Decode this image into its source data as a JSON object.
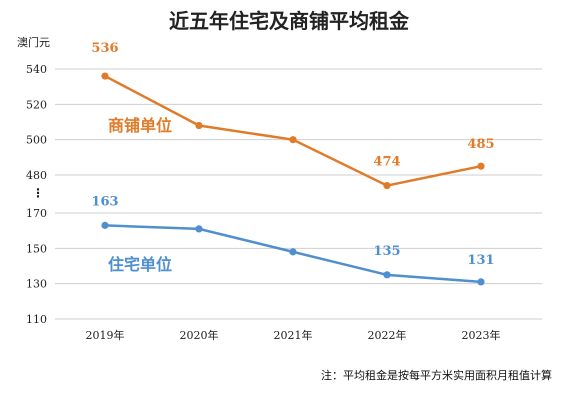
{
  "chart_data": {
    "type": "line",
    "title": "近五年住宅及商铺平均租金",
    "ylabel": "澳门元",
    "categories": [
      "2019年",
      "2020年",
      "2021年",
      "2022年",
      "2023年"
    ],
    "broken_axis": true,
    "upper_ticks": [
      480,
      500,
      520,
      540
    ],
    "lower_ticks": [
      110,
      130,
      150,
      170
    ],
    "upper_range": [
      470,
      545
    ],
    "lower_range": [
      110,
      172
    ],
    "grid": true,
    "series": [
      {
        "name": "商铺单位",
        "color": "#e07b2a",
        "segment": "upper",
        "values": [
          536,
          508,
          500,
          474,
          485
        ],
        "labels": [
          "536",
          "",
          "",
          "474",
          "485"
        ]
      },
      {
        "name": "住宅单位",
        "color": "#4f8fd0",
        "segment": "lower",
        "values": [
          163,
          161,
          148,
          135,
          131
        ],
        "labels": [
          "163",
          "",
          "",
          "135",
          "131"
        ]
      }
    ],
    "note": "注：平均租金是按每平方米实用面积月租值计算"
  }
}
